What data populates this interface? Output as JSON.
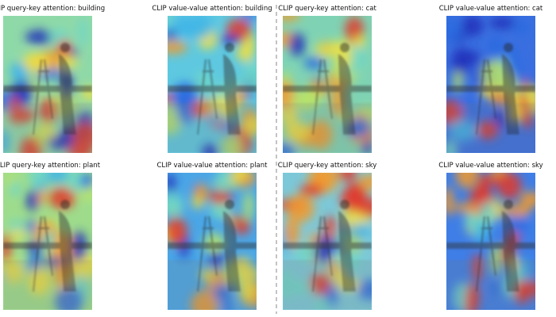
{
  "panels": [
    {
      "title": "CLIP query-key attention: building"
    },
    {
      "title": "CLIP value-value attention: building"
    },
    {
      "title": "CLIP query-key attention: cat"
    },
    {
      "title": "CLIP value-value attention: cat"
    },
    {
      "title": "CLIP query-key attention: plant"
    },
    {
      "title": "CLIP value-value attention: plant"
    },
    {
      "title": "CLIP query-key attention: sky"
    },
    {
      "title": "CLIP value-value attention: sky"
    }
  ]
}
